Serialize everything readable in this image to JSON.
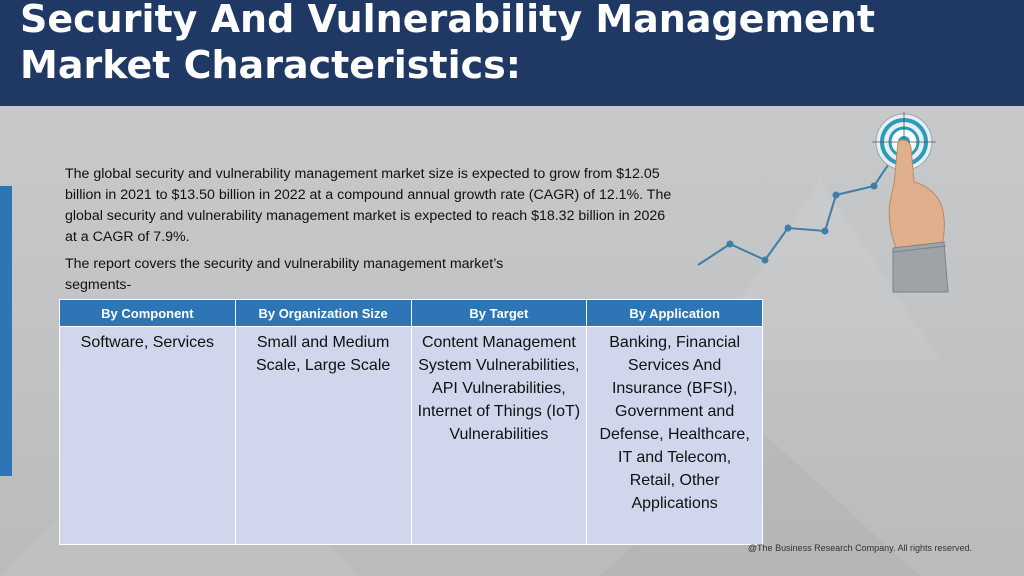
{
  "header": {
    "title_line1": "Security And Vulnerability Management",
    "title_line2": "Market Characteristics:"
  },
  "intro": {
    "paragraph1": "The global security and vulnerability management market size is expected to grow from $12.05 billion in 2021 to $13.50 billion in 2022 at a compound annual growth rate (CAGR) of 12.1%. The global security and vulnerability management market is expected to reach $18.32 billion in 2026 at a CAGR of 7.9%.",
    "paragraph2": "The report covers the security and vulnerability management market’s segments-"
  },
  "table": {
    "headers": [
      "By Component",
      "By Organization Size",
      "By Target",
      "By Application"
    ],
    "cells": [
      "Software, Services",
      "Small and Medium Scale, Large Scale",
      "Content Management System Vulnerabilities, API Vulnerabilities, Internet of Things (IoT) Vulnerabilities",
      "Banking, Financial Services And Insurance (BFSI), Government and Defense, Healthcare, IT and Telecom, Retail, Other Applications"
    ]
  },
  "footer": {
    "copyright": "@The Business Research Company. All rights reserved."
  },
  "colors": {
    "header_bg": "#1f3864",
    "accent": "#2e75b6",
    "table_cell_bg": "#d0d6ec"
  },
  "icons": {
    "illustration": "growth-chart-target-hand-icon"
  }
}
